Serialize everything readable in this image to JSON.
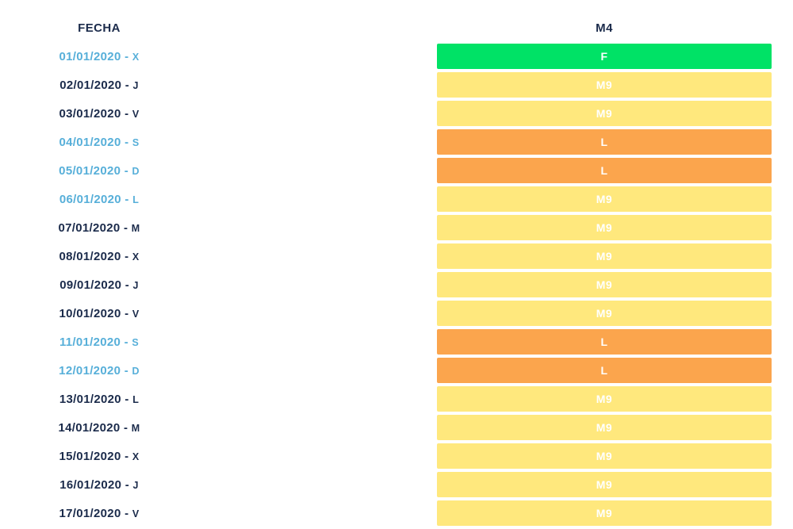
{
  "header": {
    "fecha_label": "FECHA",
    "m4_label": "M4"
  },
  "separator": "-",
  "palette": {
    "green": "#00E266",
    "yellow": "#FFE87D",
    "orange": "#FBA54D",
    "date_blue": "#57AFD9",
    "date_dark": "#1B2B4B",
    "bar_text": "#FFFFFF",
    "background": "#FFFFFF"
  },
  "shift_colors": {
    "F": "green",
    "M9": "yellow",
    "L": "orange"
  },
  "rows": [
    {
      "date": "01/01/2020",
      "day": "X",
      "highlight": true,
      "shift": "F"
    },
    {
      "date": "02/01/2020",
      "day": "J",
      "highlight": false,
      "shift": "M9"
    },
    {
      "date": "03/01/2020",
      "day": "V",
      "highlight": false,
      "shift": "M9"
    },
    {
      "date": "04/01/2020",
      "day": "S",
      "highlight": true,
      "shift": "L"
    },
    {
      "date": "05/01/2020",
      "day": "D",
      "highlight": true,
      "shift": "L"
    },
    {
      "date": "06/01/2020",
      "day": "L",
      "highlight": true,
      "shift": "M9"
    },
    {
      "date": "07/01/2020",
      "day": "M",
      "highlight": false,
      "shift": "M9"
    },
    {
      "date": "08/01/2020",
      "day": "X",
      "highlight": false,
      "shift": "M9"
    },
    {
      "date": "09/01/2020",
      "day": "J",
      "highlight": false,
      "shift": "M9"
    },
    {
      "date": "10/01/2020",
      "day": "V",
      "highlight": false,
      "shift": "M9"
    },
    {
      "date": "11/01/2020",
      "day": "S",
      "highlight": true,
      "shift": "L"
    },
    {
      "date": "12/01/2020",
      "day": "D",
      "highlight": true,
      "shift": "L"
    },
    {
      "date": "13/01/2020",
      "day": "L",
      "highlight": false,
      "shift": "M9"
    },
    {
      "date": "14/01/2020",
      "day": "M",
      "highlight": false,
      "shift": "M9"
    },
    {
      "date": "15/01/2020",
      "day": "X",
      "highlight": false,
      "shift": "M9"
    },
    {
      "date": "16/01/2020",
      "day": "J",
      "highlight": false,
      "shift": "M9"
    },
    {
      "date": "17/01/2020",
      "day": "V",
      "highlight": false,
      "shift": "M9"
    }
  ],
  "chart_data": {
    "type": "table",
    "title": "M4",
    "columns": [
      "FECHA",
      "M4"
    ],
    "rows": [
      [
        "01/01/2020 - X",
        "F"
      ],
      [
        "02/01/2020 - J",
        "M9"
      ],
      [
        "03/01/2020 - V",
        "M9"
      ],
      [
        "04/01/2020 - S",
        "L"
      ],
      [
        "05/01/2020 - D",
        "L"
      ],
      [
        "06/01/2020 - L",
        "M9"
      ],
      [
        "07/01/2020 - M",
        "M9"
      ],
      [
        "08/01/2020 - X",
        "M9"
      ],
      [
        "09/01/2020 - J",
        "M9"
      ],
      [
        "10/01/2020 - V",
        "M9"
      ],
      [
        "11/01/2020 - S",
        "L"
      ],
      [
        "12/01/2020 - D",
        "L"
      ],
      [
        "13/01/2020 - L",
        "M9"
      ],
      [
        "14/01/2020 - M",
        "M9"
      ],
      [
        "15/01/2020 - X",
        "M9"
      ],
      [
        "16/01/2020 - J",
        "M9"
      ],
      [
        "17/01/2020 - V",
        "M9"
      ]
    ],
    "cell_fill_by_value": {
      "F": "#00E266",
      "M9": "#FFE87D",
      "L": "#FBA54D"
    },
    "cell_text_color": "#FFFFFF",
    "highlighted_date_rows": [
      0,
      3,
      4,
      5,
      10,
      11
    ],
    "highlight_text_color": "#57AFD9",
    "normal_text_color": "#1B2B4B",
    "grid": false,
    "legend": "none"
  }
}
